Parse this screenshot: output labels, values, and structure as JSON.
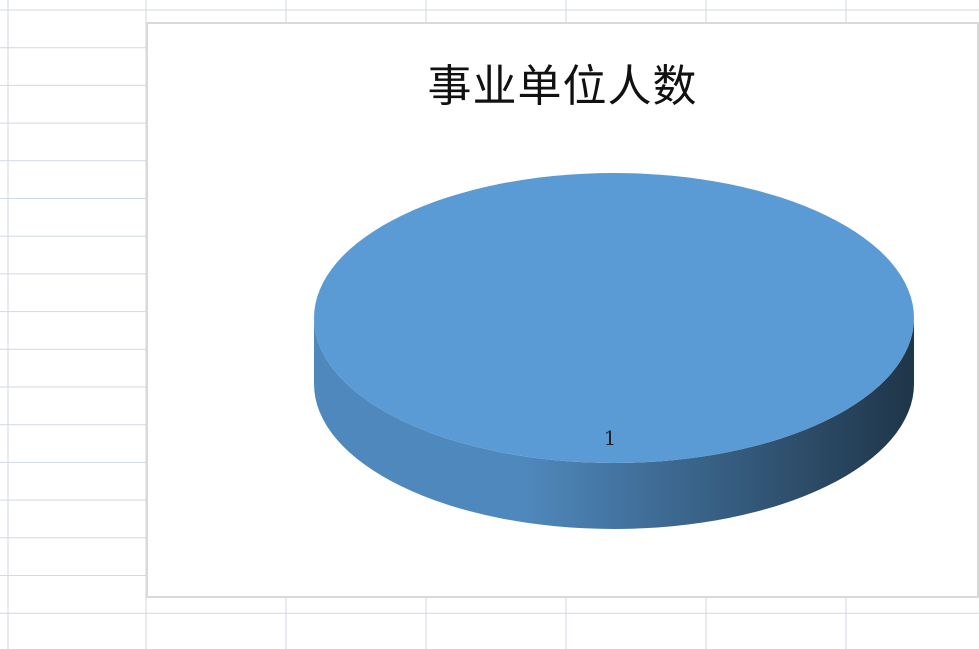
{
  "spreadsheet": {
    "grid_color": "#d0d7e5",
    "background": "#ffffff"
  },
  "chart_data": {
    "type": "pie",
    "title": "事业单位人数",
    "categories": [
      "1"
    ],
    "values": [
      1
    ],
    "data_labels": [
      "1"
    ],
    "style": "3d",
    "legend": "none",
    "colors": {
      "top": "#5b9bd5",
      "side_light": "#4f88bd",
      "side_dark": "#1f3548"
    }
  }
}
